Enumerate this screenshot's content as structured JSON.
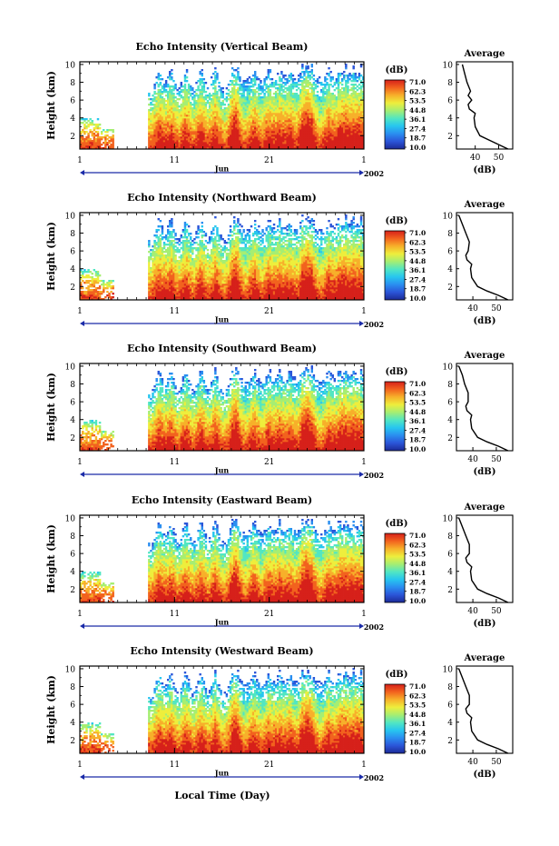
{
  "figure": {
    "xlabel_bottom": "Local Time (Day)"
  },
  "colors": {
    "scale": [
      "#1c2a96",
      "#2b55d8",
      "#2a8ef0",
      "#27c6ef",
      "#52e6c2",
      "#a6ee72",
      "#eeee3c",
      "#f7b02a",
      "#f2621e",
      "#d6201a"
    ]
  },
  "chart_data": [
    {
      "type": "heatmap",
      "title": "Echo Intensity (Vertical Beam)",
      "ylabel": "Height (km)",
      "yticks": [
        "2",
        "4",
        "6",
        "8",
        "10"
      ],
      "ylim": [
        0.5,
        10.3
      ],
      "xticks": [
        "1",
        "11",
        "21",
        "1"
      ],
      "xlim": [
        1,
        31
      ],
      "month_label": "Jun",
      "year_label": "2002",
      "colorbar": {
        "unit": "(dB)",
        "ticks": [
          "71.0",
          "62.3",
          "53.5",
          "44.8",
          "36.1",
          "27.4",
          "18.7",
          "10.0"
        ],
        "range": [
          10.0,
          71.0
        ]
      },
      "profile": {
        "title": "Average",
        "xlabel": "(dB)",
        "xticks": [
          "40",
          "50"
        ],
        "xlim": [
          32,
          56
        ],
        "yticks": [
          "2",
          "4",
          "6",
          "8",
          "10"
        ],
        "points": [
          [
            54.0,
            0.5
          ],
          [
            50.0,
            1.0
          ],
          [
            46.0,
            1.5
          ],
          [
            42.0,
            2.0
          ],
          [
            40.0,
            3.0
          ],
          [
            39.5,
            4.0
          ],
          [
            40.0,
            4.5
          ],
          [
            37.5,
            5.0
          ],
          [
            37.0,
            5.5
          ],
          [
            38.5,
            6.0
          ],
          [
            37.0,
            6.5
          ],
          [
            38.0,
            7.0
          ],
          [
            36.5,
            8.0
          ],
          [
            35.5,
            9.0
          ],
          [
            34.5,
            10.0
          ]
        ]
      }
    },
    {
      "type": "heatmap",
      "title": "Echo Intensity (Northward Beam)",
      "ylabel": "Height (km)",
      "yticks": [
        "2",
        "4",
        "6",
        "8",
        "10"
      ],
      "ylim": [
        0.5,
        10.3
      ],
      "xticks": [
        "1",
        "11",
        "21",
        "1"
      ],
      "xlim": [
        1,
        31
      ],
      "month_label": "Jun",
      "year_label": "2002",
      "colorbar": {
        "unit": "(dB)",
        "ticks": [
          "71.0",
          "62.3",
          "53.5",
          "44.8",
          "36.1",
          "27.4",
          "18.7",
          "10.0"
        ],
        "range": [
          10.0,
          71.0
        ]
      },
      "profile": {
        "title": "Average",
        "xlabel": "(dB)",
        "xticks": [
          "40",
          "50"
        ],
        "xlim": [
          33,
          57
        ],
        "yticks": [
          "2",
          "4",
          "6",
          "8",
          "10"
        ],
        "points": [
          [
            55.0,
            0.5
          ],
          [
            51.0,
            1.0
          ],
          [
            46.0,
            1.5
          ],
          [
            42.0,
            2.0
          ],
          [
            39.5,
            3.0
          ],
          [
            39.0,
            4.0
          ],
          [
            39.5,
            4.5
          ],
          [
            37.5,
            5.0
          ],
          [
            37.0,
            5.5
          ],
          [
            38.0,
            6.0
          ],
          [
            38.5,
            7.0
          ],
          [
            37.0,
            8.0
          ],
          [
            35.5,
            9.0
          ],
          [
            34.0,
            10.0
          ]
        ]
      }
    },
    {
      "type": "heatmap",
      "title": "Echo Intensity (Southward Beam)",
      "ylabel": "Height (km)",
      "yticks": [
        "2",
        "4",
        "6",
        "8",
        "10"
      ],
      "ylim": [
        0.5,
        10.3
      ],
      "xticks": [
        "1",
        "11",
        "21",
        "1"
      ],
      "xlim": [
        1,
        31
      ],
      "month_label": "Jun",
      "year_label": "2002",
      "colorbar": {
        "unit": "(dB)",
        "ticks": [
          "71.0",
          "62.3",
          "53.5",
          "44.8",
          "36.1",
          "27.4",
          "18.7",
          "10.0"
        ],
        "range": [
          10.0,
          71.0
        ]
      },
      "profile": {
        "title": "Average",
        "xlabel": "(dB)",
        "xticks": [
          "40",
          "50"
        ],
        "xlim": [
          33,
          57
        ],
        "yticks": [
          "2",
          "4",
          "6",
          "8",
          "10"
        ],
        "points": [
          [
            55.0,
            0.5
          ],
          [
            51.0,
            1.0
          ],
          [
            46.0,
            1.5
          ],
          [
            42.0,
            2.0
          ],
          [
            39.5,
            3.0
          ],
          [
            39.0,
            4.0
          ],
          [
            39.5,
            4.5
          ],
          [
            37.5,
            5.0
          ],
          [
            37.0,
            5.5
          ],
          [
            38.0,
            6.0
          ],
          [
            38.0,
            7.0
          ],
          [
            36.5,
            8.0
          ],
          [
            35.5,
            9.0
          ],
          [
            34.0,
            10.0
          ]
        ]
      }
    },
    {
      "type": "heatmap",
      "title": "Echo Intensity (Eastward Beam)",
      "ylabel": "Height (km)",
      "yticks": [
        "2",
        "4",
        "6",
        "8",
        "10"
      ],
      "ylim": [
        0.5,
        10.3
      ],
      "xticks": [
        "1",
        "11",
        "21",
        "1"
      ],
      "xlim": [
        1,
        31
      ],
      "month_label": "Jun",
      "year_label": "2002",
      "colorbar": {
        "unit": "(dB)",
        "ticks": [
          "71.0",
          "62.3",
          "53.5",
          "44.8",
          "36.1",
          "27.4",
          "18.7",
          "10.0"
        ],
        "range": [
          10.0,
          71.0
        ]
      },
      "profile": {
        "title": "Average",
        "xlabel": "(dB)",
        "xticks": [
          "40",
          "50"
        ],
        "xlim": [
          33,
          57
        ],
        "yticks": [
          "2",
          "4",
          "6",
          "8",
          "10"
        ],
        "points": [
          [
            55.0,
            0.5
          ],
          [
            51.0,
            1.0
          ],
          [
            46.0,
            1.5
          ],
          [
            42.0,
            2.0
          ],
          [
            39.5,
            3.0
          ],
          [
            39.0,
            4.0
          ],
          [
            39.5,
            4.5
          ],
          [
            37.5,
            5.0
          ],
          [
            37.0,
            5.5
          ],
          [
            38.5,
            6.0
          ],
          [
            38.5,
            7.0
          ],
          [
            37.0,
            8.0
          ],
          [
            35.5,
            9.0
          ],
          [
            34.0,
            10.0
          ]
        ]
      }
    },
    {
      "type": "heatmap",
      "title": "Echo Intensity (Westward Beam)",
      "ylabel": "Height (km)",
      "yticks": [
        "2",
        "4",
        "6",
        "8",
        "10"
      ],
      "ylim": [
        0.5,
        10.3
      ],
      "xticks": [
        "1",
        "11",
        "21",
        "1"
      ],
      "xlim": [
        1,
        31
      ],
      "month_label": "Jun",
      "year_label": "2002",
      "colorbar": {
        "unit": "(dB)",
        "ticks": [
          "71.0",
          "62.3",
          "53.5",
          "44.8",
          "36.1",
          "27.4",
          "18.7",
          "10.0"
        ],
        "range": [
          10.0,
          71.0
        ]
      },
      "profile": {
        "title": "Average",
        "xlabel": "(dB)",
        "xticks": [
          "40",
          "50"
        ],
        "xlim": [
          33,
          57
        ],
        "yticks": [
          "2",
          "4",
          "6",
          "8",
          "10"
        ],
        "points": [
          [
            55.0,
            0.5
          ],
          [
            51.0,
            1.0
          ],
          [
            46.0,
            1.5
          ],
          [
            42.0,
            2.0
          ],
          [
            39.5,
            3.0
          ],
          [
            39.0,
            4.0
          ],
          [
            39.5,
            4.5
          ],
          [
            37.5,
            5.0
          ],
          [
            37.0,
            5.5
          ],
          [
            38.5,
            6.0
          ],
          [
            38.5,
            7.0
          ],
          [
            37.0,
            8.0
          ],
          [
            35.5,
            9.0
          ],
          [
            34.0,
            10.0
          ]
        ]
      }
    }
  ]
}
